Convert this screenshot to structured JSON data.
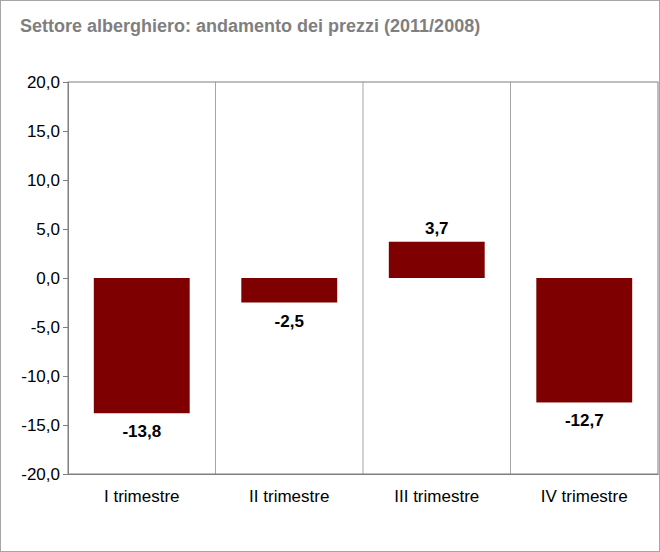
{
  "chart_data": {
    "type": "bar",
    "title": "Settore alberghiero: andamento dei prezzi (2011/2008)",
    "categories": [
      "I trimestre",
      "II trimestre",
      "III trimestre",
      "IV trimestre"
    ],
    "values": [
      -13.8,
      -2.5,
      3.7,
      -12.7
    ],
    "value_labels": [
      "-13,8",
      "-2,5",
      "3,7",
      "-12,7"
    ],
    "color": "#7f0000",
    "ylim": [
      -20,
      20
    ],
    "yticks": [
      {
        "value": -20,
        "label": "-20,0"
      },
      {
        "value": -15,
        "label": "-15,0"
      },
      {
        "value": -10,
        "label": "-10,0"
      },
      {
        "value": -5,
        "label": "-5,0"
      },
      {
        "value": 0,
        "label": "0,0"
      },
      {
        "value": 5,
        "label": "5,0"
      },
      {
        "value": 10,
        "label": "10,0"
      },
      {
        "value": 15,
        "label": "15,0"
      },
      {
        "value": 20,
        "label": "20,0"
      }
    ],
    "grid": true,
    "data_labels": true
  }
}
